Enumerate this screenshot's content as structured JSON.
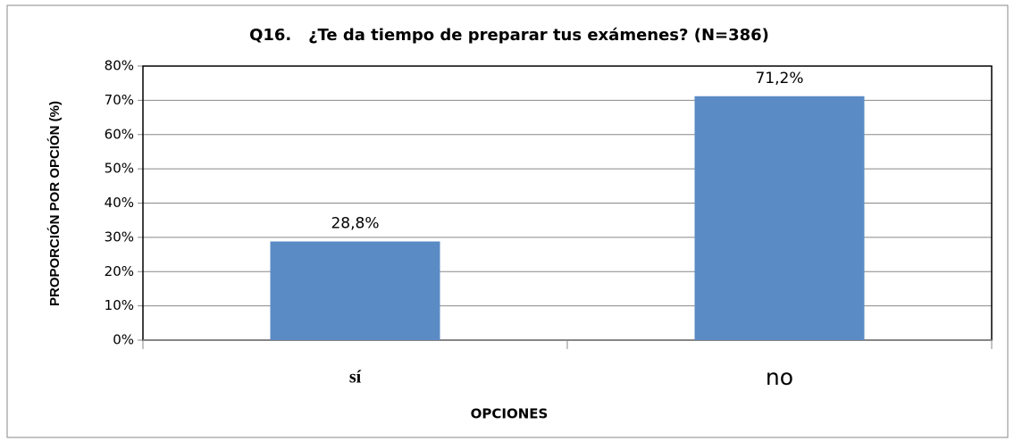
{
  "chart_data": {
    "type": "bar",
    "title": "Q16.   ¿Te da tiempo de preparar tus exámenes? (N=386)",
    "xlabel": "OPCIONES",
    "ylabel": "PROPORCIÓN POR OPCIÓN (%)",
    "categories": [
      "sí",
      "no"
    ],
    "values": [
      28.8,
      71.2
    ],
    "value_labels": [
      "28,8%",
      "71,2%"
    ],
    "color": "#5b8bc5",
    "ylim": [
      0,
      80
    ],
    "yticks": [
      {
        "value": 0,
        "label": "0%"
      },
      {
        "value": 10,
        "label": "10%"
      },
      {
        "value": 20,
        "label": "20%"
      },
      {
        "value": 30,
        "label": "30%"
      },
      {
        "value": 40,
        "label": "40%"
      },
      {
        "value": 50,
        "label": "50%"
      },
      {
        "value": 60,
        "label": "60%"
      },
      {
        "value": 70,
        "label": "70%"
      },
      {
        "value": 80,
        "label": "80%"
      }
    ],
    "grid": true
  }
}
